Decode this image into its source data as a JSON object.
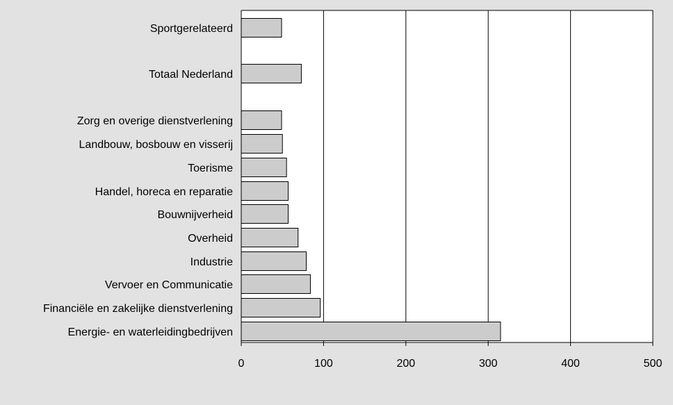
{
  "chart_data": {
    "type": "bar",
    "orientation": "horizontal",
    "title": "",
    "xlabel": "",
    "ylabel": "",
    "xlim": [
      0,
      500
    ],
    "grid": "vertical",
    "legend": "none",
    "categories": [
      "Sportgerelateerd",
      "Totaal Nederland",
      "Zorg en overige dienstverlening",
      "Landbouw, bosbouw en visserij",
      "Toerisme",
      "Handel, horeca en reparatie",
      "Bouwnijverheid",
      "Overheid",
      "Industrie",
      "Vervoer en Communicatie",
      "Financiële en zakelijke dienstverlening",
      "Energie- en waterleidingbedrijven"
    ],
    "values": [
      49,
      73,
      49,
      50,
      55,
      57,
      57,
      69,
      79,
      84,
      96,
      315
    ],
    "x_ticks": [
      "0",
      "100",
      "200",
      "300",
      "400",
      "500"
    ],
    "colors": {
      "bar_fill": "#cccccc",
      "bar_stroke": "#000000",
      "plot_bg": "#ffffff",
      "page_bg": "#e2e2e2"
    }
  }
}
